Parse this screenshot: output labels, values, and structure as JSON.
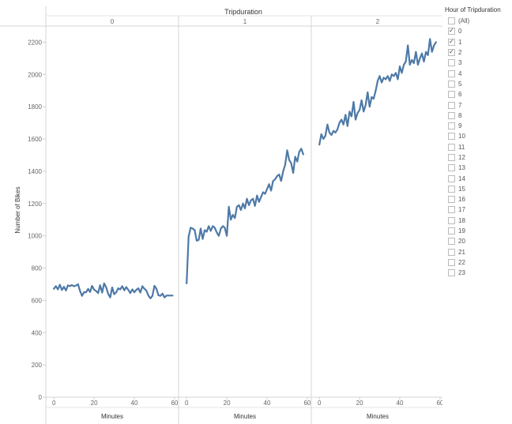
{
  "chart_data": {
    "type": "line",
    "title": "Tripduration",
    "xlabel": "Minutes",
    "ylabel": "Number of Bikes",
    "ylim": [
      0,
      2300
    ],
    "xlim": [
      -4,
      62
    ],
    "y_ticks": [
      "0",
      "200",
      "400",
      "600",
      "800",
      "1000",
      "1200",
      "1400",
      "1600",
      "1800",
      "2000",
      "2200"
    ],
    "x_ticks": [
      "0",
      "20",
      "40",
      "60"
    ],
    "color": "#4e79a7",
    "grid": false,
    "panels": [
      {
        "label": "0",
        "x": [
          0,
          1,
          2,
          3,
          4,
          5,
          6,
          7,
          8,
          9,
          10,
          11,
          12,
          13,
          14,
          15,
          16,
          17,
          18,
          19,
          20,
          21,
          22,
          23,
          24,
          25,
          26,
          27,
          28,
          29,
          30,
          31,
          32,
          33,
          34,
          35,
          36,
          37,
          38,
          39,
          40,
          41,
          42,
          43,
          44,
          45,
          46,
          47,
          48,
          49,
          50,
          51,
          52,
          53,
          54,
          55,
          56,
          57,
          58,
          59
        ],
        "y": [
          672,
          688,
          668,
          697,
          664,
          684,
          661,
          693,
          688,
          695,
          687,
          692,
          700,
          658,
          628,
          651,
          650,
          671,
          652,
          690,
          666,
          658,
          645,
          694,
          648,
          705,
          680,
          640,
          618,
          680,
          638,
          650,
          675,
          668,
          688,
          662,
          682,
          665,
          645,
          668,
          650,
          665,
          675,
          648,
          688,
          672,
          660,
          630,
          612,
          628,
          690,
          672,
          632,
          628,
          642,
          618,
          630,
          630,
          630,
          630
        ]
      },
      {
        "label": "1",
        "x": [
          0,
          1,
          2,
          3,
          4,
          5,
          6,
          7,
          8,
          9,
          10,
          11,
          12,
          13,
          14,
          15,
          16,
          17,
          18,
          19,
          20,
          21,
          22,
          23,
          24,
          25,
          26,
          27,
          28,
          29,
          30,
          31,
          32,
          33,
          34,
          35,
          36,
          37,
          38,
          39,
          40,
          41,
          42,
          43,
          44,
          45,
          46,
          47,
          48,
          49,
          50,
          51,
          52,
          53,
          54,
          55,
          56,
          57,
          58
        ],
        "y": [
          705,
          995,
          1050,
          1045,
          1035,
          970,
          975,
          1045,
          980,
          1035,
          1025,
          1060,
          1030,
          1060,
          1050,
          1020,
          1000,
          1045,
          1060,
          1050,
          1000,
          1180,
          1100,
          1130,
          1110,
          1180,
          1190,
          1160,
          1200,
          1170,
          1230,
          1190,
          1220,
          1230,
          1185,
          1250,
          1210,
          1240,
          1270,
          1260,
          1290,
          1320,
          1280,
          1340,
          1350,
          1370,
          1380,
          1340,
          1400,
          1440,
          1530,
          1470,
          1450,
          1390,
          1490,
          1460,
          1520,
          1540,
          1505
        ]
      },
      {
        "label": "2",
        "x": [
          0,
          1,
          2,
          3,
          4,
          5,
          6,
          7,
          8,
          9,
          10,
          11,
          12,
          13,
          14,
          15,
          16,
          17,
          18,
          19,
          20,
          21,
          22,
          23,
          24,
          25,
          26,
          27,
          28,
          29,
          30,
          31,
          32,
          33,
          34,
          35,
          36,
          37,
          38,
          39,
          40,
          41,
          42,
          43,
          44,
          45,
          46,
          47,
          48,
          49,
          50,
          51,
          52,
          53,
          54,
          55,
          56,
          57,
          58
        ],
        "y": [
          1565,
          1630,
          1600,
          1620,
          1690,
          1640,
          1625,
          1650,
          1640,
          1660,
          1700,
          1720,
          1690,
          1750,
          1680,
          1770,
          1740,
          1830,
          1720,
          1760,
          1780,
          1840,
          1770,
          1810,
          1890,
          1800,
          1860,
          1850,
          1900,
          1960,
          1990,
          1950,
          1980,
          1970,
          1990,
          1960,
          2000,
          1990,
          2010,
          1970,
          2050,
          2010,
          2060,
          2080,
          2180,
          2060,
          2090,
          2070,
          2140,
          2060,
          2100,
          2130,
          2080,
          2140,
          2120,
          2220,
          2140,
          2180,
          2200
        ]
      }
    ]
  },
  "legend": {
    "title": "Hour of Tripduration",
    "items": [
      {
        "label": "(All)",
        "checked": false
      },
      {
        "label": "0",
        "checked": true
      },
      {
        "label": "1",
        "checked": true
      },
      {
        "label": "2",
        "checked": true
      },
      {
        "label": "3",
        "checked": false
      },
      {
        "label": "4",
        "checked": false
      },
      {
        "label": "5",
        "checked": false
      },
      {
        "label": "6",
        "checked": false
      },
      {
        "label": "7",
        "checked": false
      },
      {
        "label": "8",
        "checked": false
      },
      {
        "label": "9",
        "checked": false
      },
      {
        "label": "10",
        "checked": false
      },
      {
        "label": "11",
        "checked": false
      },
      {
        "label": "12",
        "checked": false
      },
      {
        "label": "13",
        "checked": false
      },
      {
        "label": "14",
        "checked": false
      },
      {
        "label": "15",
        "checked": false
      },
      {
        "label": "16",
        "checked": false
      },
      {
        "label": "17",
        "checked": false
      },
      {
        "label": "18",
        "checked": false
      },
      {
        "label": "19",
        "checked": false
      },
      {
        "label": "20",
        "checked": false
      },
      {
        "label": "21",
        "checked": false
      },
      {
        "label": "22",
        "checked": false
      },
      {
        "label": "23",
        "checked": false
      }
    ]
  }
}
